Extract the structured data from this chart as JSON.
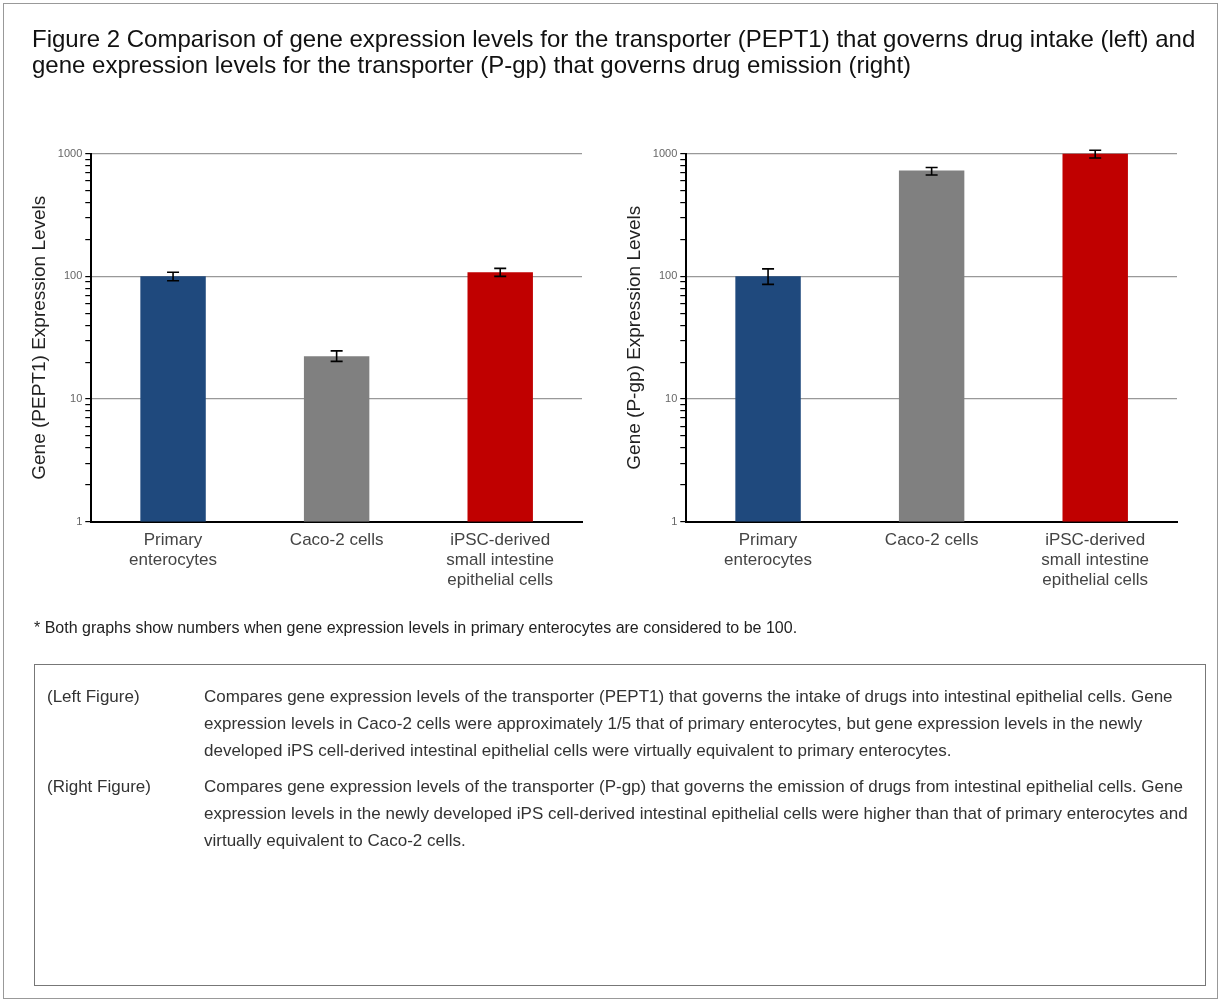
{
  "chart_data": [
    {
      "type": "bar",
      "title": "Figure 2 Comparison of gene expression levels for the transporter (PEPT1) that governs drug intake (left) and gene expression levels for the transporter (P-gp) that governs drug emission (right)",
      "ylabel": "Gene (PEPT1) Expression Levels",
      "categories": [
        "Primary enterocytes",
        "Caco-2 cells",
        "iPSC-derived small intestine epithelial cells"
      ],
      "values": [
        100,
        22.3,
        108
      ],
      "colors": [
        "#1f497d",
        "#808080",
        "#c00000"
      ],
      "errors": [
        [
          92,
          108
        ],
        [
          20.3,
          24.7
        ],
        [
          100,
          116
        ]
      ],
      "log": "y",
      "ylim": [
        1,
        1000
      ],
      "yticks": [
        1,
        {
          "value": 2,
          "label": null
        },
        {
          "value": 3,
          "label": null
        },
        {
          "value": 4,
          "label": null
        },
        {
          "value": 5,
          "label": null
        },
        {
          "value": 6,
          "label": null
        },
        {
          "value": 7,
          "label": null
        },
        {
          "value": 8,
          "label": null
        },
        {
          "value": 9,
          "label": null
        },
        10,
        {
          "value": 20,
          "label": null
        },
        {
          "value": 30,
          "label": null
        },
        {
          "value": 40,
          "label": null
        },
        {
          "value": 50,
          "label": null
        },
        {
          "value": 60,
          "label": null
        },
        {
          "value": 70,
          "label": null
        },
        {
          "value": 80,
          "label": null
        },
        {
          "value": 90,
          "label": null
        },
        100,
        {
          "value": 200,
          "label": null
        },
        {
          "value": 300,
          "label": null
        },
        {
          "value": 400,
          "label": null
        },
        {
          "value": 500,
          "label": null
        },
        {
          "value": 600,
          "label": null
        },
        {
          "value": 700,
          "label": null
        },
        {
          "value": 800,
          "label": null
        },
        {
          "value": 900,
          "label": null
        },
        1000
      ],
      "grid": "y",
      "legend": false,
      "annotations": [
        "* Both graphs show numbers when gene expression levels in primary enterocytes are considered to be 100.",
        "(Left Figure)",
        "Compares gene expression levels of the transporter (PEPT1) that governs the intake of drugs into intestinal epithelial cells. Gene expression levels in Caco-2 cells were approximately 1/5 that of primary enterocytes, but gene expression levels in the newly developed iPS cell-derived intestinal epithelial cells were virtually equivalent to primary enterocytes.",
        "(Right Figure)",
        "Compares gene expression levels of the transporter (P-gp) that governs the emission of drugs from intestinal epithelial cells. Gene expression levels in the newly developed iPS cell-derived intestinal epithelial cells were higher than that of primary enterocytes and virtually equivalent to Caco-2 cells."
      ]
    },
    {
      "type": "bar",
      "ylabel": "Gene (P-gp) Expression Levels",
      "categories": [
        "Primary enterocytes",
        "Caco-2 cells",
        "iPSC-derived small intestine epithelial cells"
      ],
      "values": [
        100,
        730,
        1000
      ],
      "colors": [
        "#1f497d",
        "#808080",
        "#c00000"
      ],
      "errors": [
        [
          86,
          115
        ],
        [
          670,
          770
        ],
        [
          920,
          1065
        ]
      ],
      "log": "y",
      "ylim": [
        1,
        1000
      ],
      "yticks": [
        1,
        {
          "value": 2,
          "label": null
        },
        {
          "value": 3,
          "label": null
        },
        {
          "value": 4,
          "label": null
        },
        {
          "value": 5,
          "label": null
        },
        {
          "value": 6,
          "label": null
        },
        {
          "value": 7,
          "label": null
        },
        {
          "value": 8,
          "label": null
        },
        {
          "value": 9,
          "label": null
        },
        10,
        {
          "value": 20,
          "label": null
        },
        {
          "value": 30,
          "label": null
        },
        {
          "value": 40,
          "label": null
        },
        {
          "value": 50,
          "label": null
        },
        {
          "value": 60,
          "label": null
        },
        {
          "value": 70,
          "label": null
        },
        {
          "value": 80,
          "label": null
        },
        {
          "value": 90,
          "label": null
        },
        100,
        {
          "value": 200,
          "label": null
        },
        {
          "value": 300,
          "label": null
        },
        {
          "value": 400,
          "label": null
        },
        {
          "value": 500,
          "label": null
        },
        {
          "value": 600,
          "label": null
        },
        {
          "value": 700,
          "label": null
        },
        {
          "value": 800,
          "label": null
        },
        {
          "value": 900,
          "label": null
        },
        1000
      ],
      "grid": "y",
      "legend": false
    }
  ]
}
